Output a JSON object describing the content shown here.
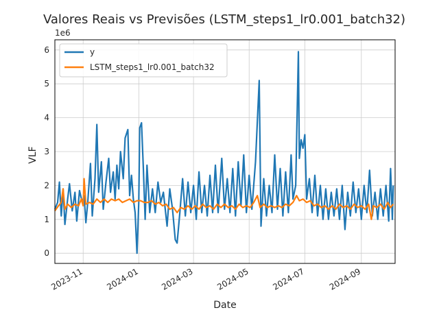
{
  "chart_data": {
    "type": "line",
    "title": "Valores Reais vs Previsões (LSTM_steps1_lr0.001_batch32)",
    "xlabel": "Date",
    "ylabel": "VLF",
    "y_offset_text": "1e6",
    "xlim": [
      "2023-10-01",
      "2024-10-08"
    ],
    "ylim": [
      -300000,
      6300000
    ],
    "x_ticks": [
      "2023-11",
      "2024-01",
      "2024-03",
      "2024-05",
      "2024-07",
      "2024-09"
    ],
    "y_ticks": [
      0,
      1,
      2,
      3,
      4,
      5,
      6
    ],
    "grid": true,
    "legend_position": "top-left",
    "series": [
      {
        "name": "y",
        "color": "#1f77b4",
        "points": [
          [
            "2023-10-01",
            1300000
          ],
          [
            "2023-10-04",
            1500000
          ],
          [
            "2023-10-06",
            2100000
          ],
          [
            "2023-10-08",
            1100000
          ],
          [
            "2023-10-10",
            1900000
          ],
          [
            "2023-10-12",
            850000
          ],
          [
            "2023-10-15",
            1600000
          ],
          [
            "2023-10-17",
            2050000
          ],
          [
            "2023-10-20",
            1250000
          ],
          [
            "2023-10-23",
            1800000
          ],
          [
            "2023-10-25",
            950000
          ],
          [
            "2023-10-28",
            1850000
          ],
          [
            "2023-10-31",
            1500000
          ],
          [
            "2023-11-02",
            1700000
          ],
          [
            "2023-11-04",
            900000
          ],
          [
            "2023-11-06",
            1500000
          ],
          [
            "2023-11-09",
            2650000
          ],
          [
            "2023-11-11",
            1100000
          ],
          [
            "2023-11-14",
            2200000
          ],
          [
            "2023-11-16",
            3800000
          ],
          [
            "2023-11-18",
            1800000
          ],
          [
            "2023-11-21",
            2700000
          ],
          [
            "2023-11-23",
            1300000
          ],
          [
            "2023-11-26",
            2100000
          ],
          [
            "2023-11-29",
            2800000
          ],
          [
            "2023-12-01",
            1800000
          ],
          [
            "2023-12-04",
            2400000
          ],
          [
            "2023-12-06",
            1600000
          ],
          [
            "2023-12-08",
            2600000
          ],
          [
            "2023-12-10",
            1900000
          ],
          [
            "2023-12-12",
            3000000
          ],
          [
            "2023-12-15",
            2200000
          ],
          [
            "2023-12-17",
            3400000
          ],
          [
            "2023-12-20",
            3650000
          ],
          [
            "2023-12-22",
            1700000
          ],
          [
            "2023-12-24",
            2300000
          ],
          [
            "2023-12-26",
            1600000
          ],
          [
            "2023-12-28",
            1200000
          ],
          [
            "2023-12-30",
            0
          ],
          [
            "2024-01-01",
            1500000
          ],
          [
            "2024-01-02",
            3700000
          ],
          [
            "2024-01-04",
            3850000
          ],
          [
            "2024-01-06",
            2500000
          ],
          [
            "2024-01-08",
            1000000
          ],
          [
            "2024-01-10",
            2600000
          ],
          [
            "2024-01-13",
            1200000
          ],
          [
            "2024-01-16",
            1900000
          ],
          [
            "2024-01-19",
            1200000
          ],
          [
            "2024-01-22",
            2100000
          ],
          [
            "2024-01-25",
            1500000
          ],
          [
            "2024-01-28",
            1800000
          ],
          [
            "2024-02-01",
            800000
          ],
          [
            "2024-02-04",
            1900000
          ],
          [
            "2024-02-07",
            1300000
          ],
          [
            "2024-02-10",
            400000
          ],
          [
            "2024-02-12",
            300000
          ],
          [
            "2024-02-15",
            1200000
          ],
          [
            "2024-02-18",
            2200000
          ],
          [
            "2024-02-21",
            1100000
          ],
          [
            "2024-02-24",
            2100000
          ],
          [
            "2024-02-27",
            1200000
          ],
          [
            "2024-03-01",
            2000000
          ],
          [
            "2024-03-04",
            1000000
          ],
          [
            "2024-03-07",
            2400000
          ],
          [
            "2024-03-10",
            1200000
          ],
          [
            "2024-03-13",
            2000000
          ],
          [
            "2024-03-16",
            1100000
          ],
          [
            "2024-03-19",
            2300000
          ],
          [
            "2024-03-22",
            1200000
          ],
          [
            "2024-03-25",
            2600000
          ],
          [
            "2024-03-28",
            1200000
          ],
          [
            "2024-04-01",
            2800000
          ],
          [
            "2024-04-04",
            1300000
          ],
          [
            "2024-04-07",
            2200000
          ],
          [
            "2024-04-10",
            1200000
          ],
          [
            "2024-04-13",
            2500000
          ],
          [
            "2024-04-16",
            1100000
          ],
          [
            "2024-04-19",
            2700000
          ],
          [
            "2024-04-22",
            1400000
          ],
          [
            "2024-04-25",
            2900000
          ],
          [
            "2024-04-28",
            1200000
          ],
          [
            "2024-05-01",
            2300000
          ],
          [
            "2024-05-04",
            1300000
          ],
          [
            "2024-05-08",
            2700000
          ],
          [
            "2024-05-12",
            5100000
          ],
          [
            "2024-05-14",
            800000
          ],
          [
            "2024-05-17",
            2200000
          ],
          [
            "2024-05-20",
            1100000
          ],
          [
            "2024-05-23",
            2000000
          ],
          [
            "2024-05-26",
            1200000
          ],
          [
            "2024-05-29",
            2900000
          ],
          [
            "2024-06-01",
            1300000
          ],
          [
            "2024-06-04",
            2500000
          ],
          [
            "2024-06-07",
            1100000
          ],
          [
            "2024-06-10",
            2400000
          ],
          [
            "2024-06-13",
            1200000
          ],
          [
            "2024-06-16",
            2900000
          ],
          [
            "2024-06-18",
            1600000
          ],
          [
            "2024-06-21",
            2000000
          ],
          [
            "2024-06-24",
            5950000
          ],
          [
            "2024-06-25",
            2800000
          ],
          [
            "2024-06-27",
            3350000
          ],
          [
            "2024-06-29",
            3100000
          ],
          [
            "2024-07-01",
            3500000
          ],
          [
            "2024-07-03",
            1600000
          ],
          [
            "2024-07-06",
            2200000
          ],
          [
            "2024-07-09",
            1200000
          ],
          [
            "2024-07-12",
            2300000
          ],
          [
            "2024-07-15",
            1100000
          ],
          [
            "2024-07-18",
            2000000
          ],
          [
            "2024-07-21",
            1000000
          ],
          [
            "2024-07-24",
            1900000
          ],
          [
            "2024-07-27",
            1000000
          ],
          [
            "2024-07-30",
            1800000
          ],
          [
            "2024-08-02",
            1100000
          ],
          [
            "2024-08-05",
            1900000
          ],
          [
            "2024-08-08",
            1000000
          ],
          [
            "2024-08-11",
            2000000
          ],
          [
            "2024-08-14",
            700000
          ],
          [
            "2024-08-17",
            1800000
          ],
          [
            "2024-08-20",
            1100000
          ],
          [
            "2024-08-23",
            2100000
          ],
          [
            "2024-08-26",
            1200000
          ],
          [
            "2024-08-29",
            1900000
          ],
          [
            "2024-09-01",
            1000000
          ],
          [
            "2024-09-04",
            2000000
          ],
          [
            "2024-09-07",
            1200000
          ],
          [
            "2024-09-10",
            2450000
          ],
          [
            "2024-09-13",
            1100000
          ],
          [
            "2024-09-16",
            1800000
          ],
          [
            "2024-09-19",
            1000000
          ],
          [
            "2024-09-22",
            1900000
          ],
          [
            "2024-09-25",
            1100000
          ],
          [
            "2024-09-28",
            2000000
          ],
          [
            "2024-10-01",
            950000
          ],
          [
            "2024-10-03",
            2500000
          ],
          [
            "2024-10-05",
            1000000
          ],
          [
            "2024-10-06",
            2000000
          ]
        ]
      },
      {
        "name": "LSTM_steps1_lr0.001_batch32",
        "color": "#ff7f0e",
        "points": [
          [
            "2023-10-01",
            1250000
          ],
          [
            "2023-10-05",
            1400000
          ],
          [
            "2023-10-08",
            1500000
          ],
          [
            "2023-10-10",
            1900000
          ],
          [
            "2023-10-12",
            1300000
          ],
          [
            "2023-10-15",
            1450000
          ],
          [
            "2023-10-19",
            1350000
          ],
          [
            "2023-10-23",
            1450000
          ],
          [
            "2023-10-27",
            1400000
          ],
          [
            "2023-10-30",
            1600000
          ],
          [
            "2023-11-01",
            1400000
          ],
          [
            "2023-11-02",
            2200000
          ],
          [
            "2023-11-04",
            1450000
          ],
          [
            "2023-11-08",
            1500000
          ],
          [
            "2023-11-12",
            1450000
          ],
          [
            "2023-11-16",
            1600000
          ],
          [
            "2023-11-20",
            1500000
          ],
          [
            "2023-11-24",
            1600000
          ],
          [
            "2023-11-28",
            1500000
          ],
          [
            "2023-12-02",
            1600000
          ],
          [
            "2023-12-06",
            1550000
          ],
          [
            "2023-12-10",
            1600000
          ],
          [
            "2023-12-14",
            1500000
          ],
          [
            "2023-12-18",
            1550000
          ],
          [
            "2023-12-22",
            1600000
          ],
          [
            "2023-12-26",
            1500000
          ],
          [
            "2023-12-30",
            1550000
          ],
          [
            "2024-01-03",
            1550000
          ],
          [
            "2024-01-07",
            1500000
          ],
          [
            "2024-01-11",
            1500000
          ],
          [
            "2024-01-15",
            1550000
          ],
          [
            "2024-01-19",
            1450000
          ],
          [
            "2024-01-23",
            1500000
          ],
          [
            "2024-01-27",
            1400000
          ],
          [
            "2024-01-31",
            1450000
          ],
          [
            "2024-02-04",
            1300000
          ],
          [
            "2024-02-08",
            1350000
          ],
          [
            "2024-02-12",
            1200000
          ],
          [
            "2024-02-16",
            1350000
          ],
          [
            "2024-02-20",
            1300000
          ],
          [
            "2024-02-24",
            1400000
          ],
          [
            "2024-02-28",
            1300000
          ],
          [
            "2024-03-03",
            1400000
          ],
          [
            "2024-03-07",
            1300000
          ],
          [
            "2024-03-11",
            1450000
          ],
          [
            "2024-03-15",
            1350000
          ],
          [
            "2024-03-19",
            1400000
          ],
          [
            "2024-03-23",
            1300000
          ],
          [
            "2024-03-27",
            1450000
          ],
          [
            "2024-03-31",
            1350000
          ],
          [
            "2024-04-04",
            1450000
          ],
          [
            "2024-04-08",
            1350000
          ],
          [
            "2024-04-12",
            1400000
          ],
          [
            "2024-04-16",
            1300000
          ],
          [
            "2024-04-20",
            1450000
          ],
          [
            "2024-04-24",
            1350000
          ],
          [
            "2024-04-28",
            1400000
          ],
          [
            "2024-05-02",
            1350000
          ],
          [
            "2024-05-06",
            1500000
          ],
          [
            "2024-05-10",
            1700000
          ],
          [
            "2024-05-13",
            1350000
          ],
          [
            "2024-05-17",
            1450000
          ],
          [
            "2024-05-21",
            1350000
          ],
          [
            "2024-05-25",
            1400000
          ],
          [
            "2024-05-29",
            1350000
          ],
          [
            "2024-06-02",
            1400000
          ],
          [
            "2024-06-06",
            1350000
          ],
          [
            "2024-06-10",
            1450000
          ],
          [
            "2024-06-14",
            1400000
          ],
          [
            "2024-06-18",
            1500000
          ],
          [
            "2024-06-22",
            1700000
          ],
          [
            "2024-06-25",
            1550000
          ],
          [
            "2024-06-29",
            1600000
          ],
          [
            "2024-07-03",
            1500000
          ],
          [
            "2024-07-07",
            1550000
          ],
          [
            "2024-07-11",
            1400000
          ],
          [
            "2024-07-15",
            1450000
          ],
          [
            "2024-07-19",
            1350000
          ],
          [
            "2024-07-23",
            1400000
          ],
          [
            "2024-07-27",
            1300000
          ],
          [
            "2024-07-31",
            1400000
          ],
          [
            "2024-08-04",
            1300000
          ],
          [
            "2024-08-08",
            1450000
          ],
          [
            "2024-08-12",
            1350000
          ],
          [
            "2024-08-16",
            1400000
          ],
          [
            "2024-08-20",
            1300000
          ],
          [
            "2024-08-24",
            1450000
          ],
          [
            "2024-08-28",
            1350000
          ],
          [
            "2024-09-01",
            1400000
          ],
          [
            "2024-09-05",
            1300000
          ],
          [
            "2024-09-09",
            1450000
          ],
          [
            "2024-09-12",
            1000000
          ],
          [
            "2024-09-14",
            1400000
          ],
          [
            "2024-09-18",
            1350000
          ],
          [
            "2024-09-22",
            1450000
          ],
          [
            "2024-09-26",
            1300000
          ],
          [
            "2024-09-30",
            1500000
          ],
          [
            "2024-10-03",
            1350000
          ],
          [
            "2024-10-06",
            1450000
          ]
        ]
      }
    ]
  }
}
